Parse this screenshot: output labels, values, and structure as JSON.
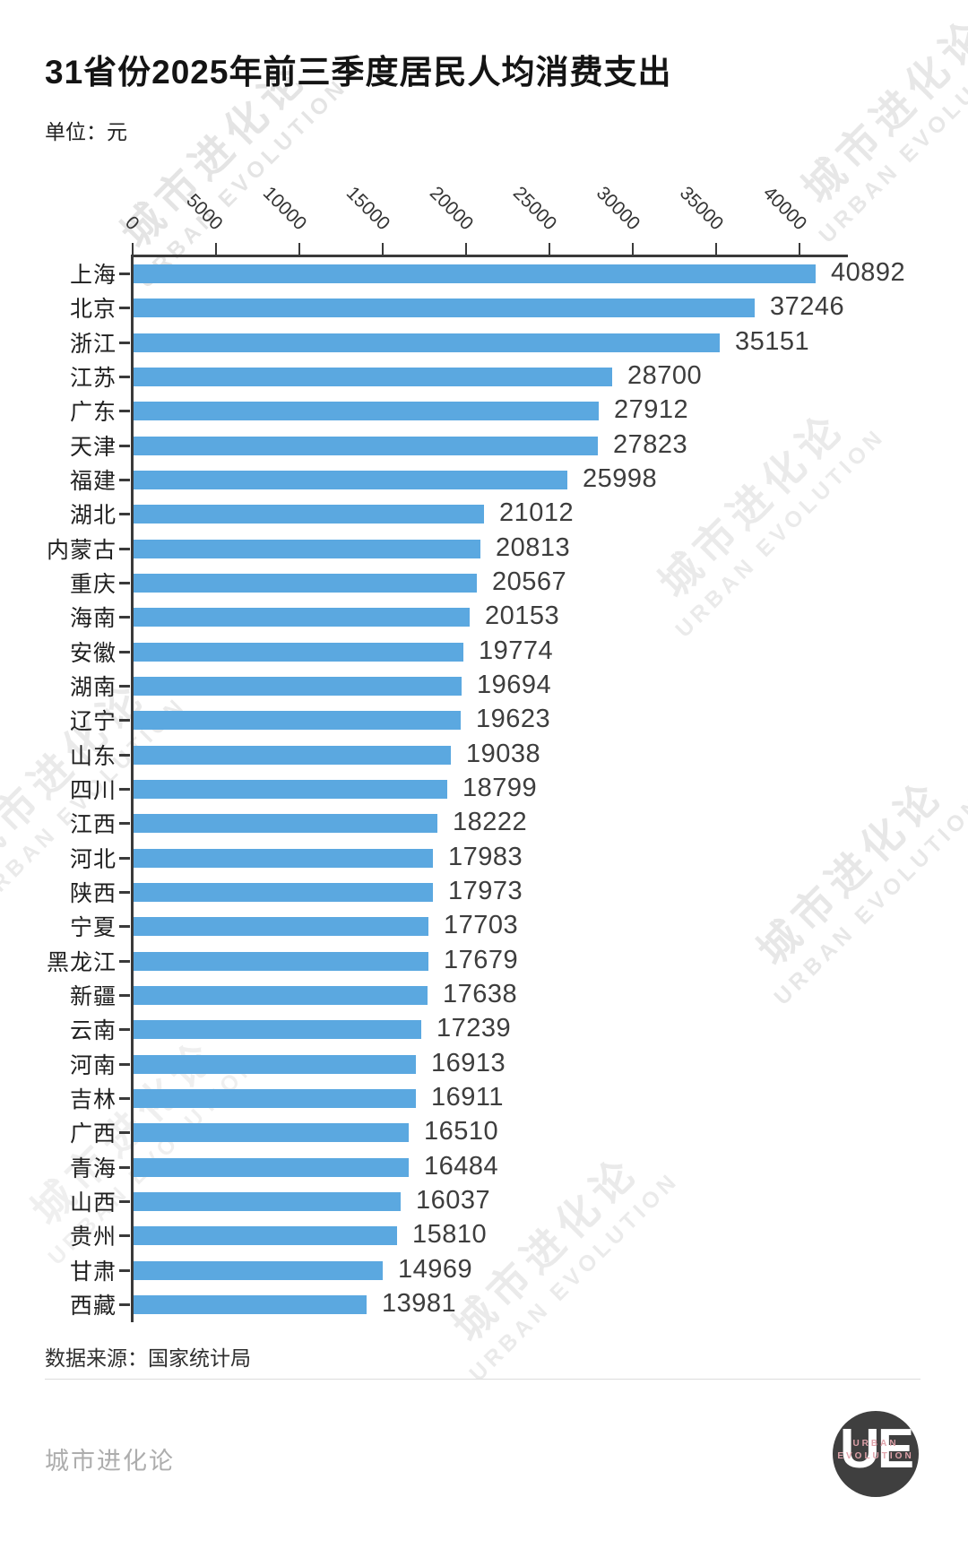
{
  "header": {
    "title": "31省份2025年前三季度居民人均消费支出",
    "unit_label": "单位：元"
  },
  "chart_data": {
    "type": "bar",
    "orientation": "horizontal",
    "title": "31省份2025年前三季度居民人均消费支出",
    "unit": "元",
    "categories": [
      "上海",
      "北京",
      "浙江",
      "江苏",
      "广东",
      "天津",
      "福建",
      "湖北",
      "内蒙古",
      "重庆",
      "海南",
      "安徽",
      "湖南",
      "辽宁",
      "山东",
      "四川",
      "江西",
      "河北",
      "陕西",
      "宁夏",
      "黑龙江",
      "新疆",
      "云南",
      "河南",
      "吉林",
      "广西",
      "青海",
      "山西",
      "贵州",
      "甘肃",
      "西藏"
    ],
    "values": [
      40892,
      37246,
      35151,
      28700,
      27912,
      27823,
      25998,
      21012,
      20813,
      20567,
      20153,
      19774,
      19694,
      19623,
      19038,
      18799,
      18222,
      17983,
      17973,
      17703,
      17679,
      17638,
      17239,
      16913,
      16911,
      16510,
      16484,
      16037,
      15810,
      14969,
      13981
    ],
    "x_ticks": [
      0,
      5000,
      10000,
      15000,
      20000,
      25000,
      30000,
      35000,
      40000
    ],
    "xlim": [
      0,
      42800
    ],
    "grid": false,
    "legend": "none",
    "bar_color": "#5BA8E0",
    "axis_color": "#3A3A3A"
  },
  "source": {
    "label": "数据来源：国家统计局"
  },
  "footer": {
    "brand": "城市进化论"
  },
  "logo": {
    "monogram": "UE",
    "line1": "URBAN",
    "line2": "EVOLUTION"
  },
  "watermark": {
    "line1": "城市进化论",
    "line2": "URBAN EVOLUTION"
  }
}
